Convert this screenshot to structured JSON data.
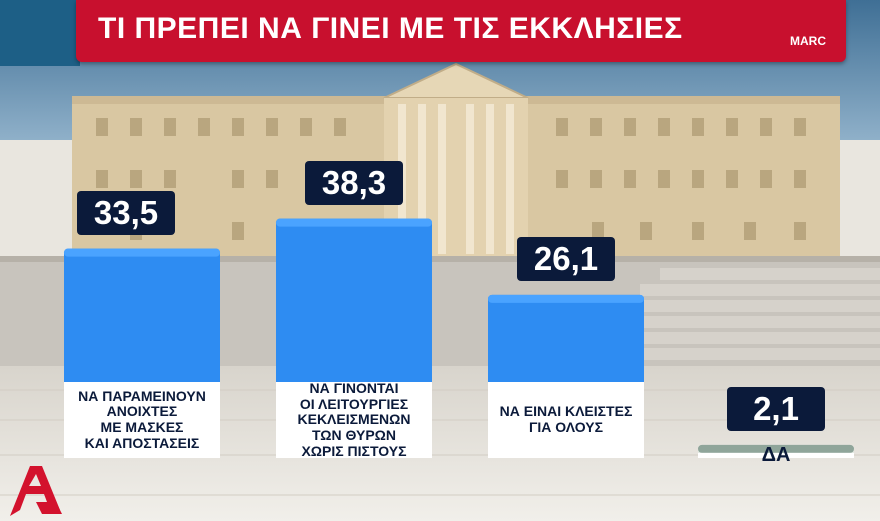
{
  "title": "ΤΙ ΠΡΕΠΕΙ ΝΑ ΓΙΝΕΙ ΜΕ ΤΙΣ ΕΚΚΛΗΣΙΕΣ",
  "source": "MARC",
  "colors": {
    "title_band": "#c8102e",
    "bar": "#2e8cf2",
    "bar_top": "#4aa3ff",
    "dk_bar": "#dfe7df",
    "value_box": "#0b1a3a",
    "logo": "#d3122d"
  },
  "logo_icon": "alpha-logo-icon",
  "chart_data": {
    "type": "bar",
    "categories": [
      "ΝΑ ΠΑΡΑΜΕΙΝΟΥΝ ΑΝΟΙΧΤΕΣ ΜΕ ΜΑΣΚΕΣ ΚΑΙ ΑΠΟΣΤΑΣΕΙΣ",
      "ΝΑ ΓΙΝΟΝΤΑΙ ΟΙ ΛΕΙΤΟΥΡΓΙΕΣ ΚΕΚΛΕΙΣΜΕΝΩΝ ΤΩΝ ΘΥΡΩΝ ΧΩΡΙΣ ΠΙΣΤΟΥΣ",
      "ΝΑ ΕΙΝΑΙ ΚΛΕΙΣΤΕΣ ΓΙΑ ΟΛΟΥΣ",
      "ΔΑ"
    ],
    "label_lines": [
      [
        "ΝΑ ΠΑΡΑΜΕΙΝΟΥΝ",
        "ΑΝΟΙΧΤΕΣ",
        "ΜΕ ΜΑΣΚΕΣ",
        "ΚΑΙ ΑΠΟΣΤΑΣΕΙΣ"
      ],
      [
        "ΝΑ ΓΙΝΟΝΤΑΙ",
        "ΟΙ ΛΕΙΤΟΥΡΓΙΕΣ",
        "ΚΕΚΛΕΙΣΜΕΝΩΝ",
        "ΤΩΝ ΘΥΡΩΝ",
        "ΧΩΡΙΣ ΠΙΣΤΟΥΣ"
      ],
      [
        "ΝΑ ΕΙΝΑΙ ΚΛΕΙΣΤΕΣ",
        "ΓΙΑ ΟΛΟΥΣ"
      ],
      [
        "ΔΑ"
      ]
    ],
    "values": [
      33.5,
      38.3,
      26.1,
      2.1
    ],
    "value_labels": [
      "33,5",
      "38,3",
      "26,1",
      "2,1"
    ],
    "ylim": [
      0,
      40
    ],
    "grid": false,
    "legend": "none"
  }
}
